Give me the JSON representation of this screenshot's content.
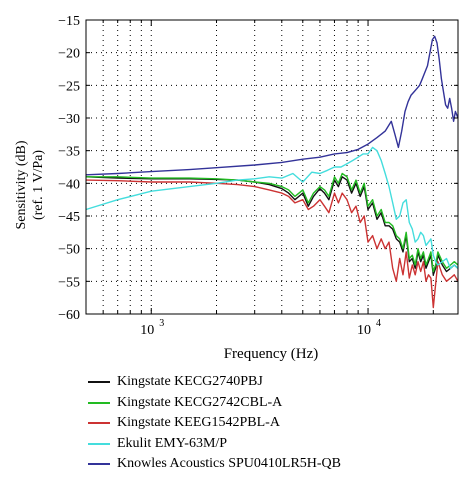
{
  "chart_data": {
    "type": "line",
    "xlabel": "Frequency (Hz)",
    "ylabel_line1": "Sensitivity (dB)",
    "ylabel_line2": "(ref. 1 V/Pa)",
    "x_scale": "log",
    "xlim": [
      500,
      26000
    ],
    "ylim": [
      -60,
      -15
    ],
    "x_ticks": [
      {
        "value": 1000,
        "label_base": "10",
        "label_exp": "3"
      },
      {
        "value": 10000,
        "label_base": "10",
        "label_exp": "4"
      }
    ],
    "y_ticks": [
      -60,
      -55,
      -50,
      -45,
      -40,
      -35,
      -30,
      -25,
      -20,
      -15
    ],
    "grid": "dotted",
    "legend_position": "below",
    "series": [
      {
        "name": "Kingstate KECG2740PBJ",
        "color": "#111111",
        "x": [
          500,
          700,
          1000,
          1500,
          2000,
          2500,
          3000,
          3500,
          4000,
          4300,
          4600,
          5000,
          5300,
          5600,
          6000,
          6300,
          6600,
          7000,
          7300,
          7600,
          8000,
          8400,
          8800,
          9200,
          9600,
          10000,
          10500,
          11000,
          11500,
          12000,
          12500,
          13000,
          13500,
          14000,
          14500,
          15000,
          15500,
          16000,
          16500,
          17000,
          17500,
          18000,
          18500,
          19000,
          19500,
          20000,
          20500,
          21000,
          22000,
          23000,
          24000,
          25000,
          26000
        ],
        "y": [
          -39,
          -39.2,
          -39.3,
          -39.3,
          -39.4,
          -39.5,
          -39.8,
          -40.2,
          -40.8,
          -41.5,
          -42.5,
          -41.5,
          -43.5,
          -42,
          -40.8,
          -41.5,
          -42.5,
          -39.5,
          -40.5,
          -39,
          -39.5,
          -41.5,
          -40,
          -42,
          -40.5,
          -44,
          -43,
          -45.5,
          -44.5,
          -46.5,
          -46.5,
          -47,
          -48.5,
          -49,
          -50.5,
          -48,
          -52,
          -51.5,
          -53,
          -50.5,
          -52,
          -51,
          -53,
          -52,
          -51,
          -54,
          -53,
          -51,
          -52.5,
          -53.5,
          -53,
          -52.5,
          -53
        ]
      },
      {
        "name": "Kingstate KECG2742CBL-A",
        "color": "#22bb22",
        "x": [
          500,
          700,
          1000,
          1500,
          2000,
          2500,
          3000,
          3500,
          4000,
          4300,
          4600,
          5000,
          5300,
          5600,
          6000,
          6300,
          6600,
          7000,
          7300,
          7600,
          8000,
          8400,
          8800,
          9200,
          9600,
          10000,
          10500,
          11000,
          11500,
          12000,
          12500,
          13000,
          13500,
          14000,
          14500,
          15000,
          15500,
          16000,
          16500,
          17000,
          17500,
          18000,
          18500,
          19000,
          19500,
          20000,
          20500,
          21000,
          22000,
          23000,
          24000,
          25000,
          26000
        ],
        "y": [
          -39,
          -39,
          -39.2,
          -39.2,
          -39.3,
          -39.5,
          -39.8,
          -40,
          -40.5,
          -41,
          -42,
          -41,
          -43,
          -41.5,
          -40.5,
          -41,
          -42,
          -39,
          -40,
          -38.5,
          -39,
          -41,
          -39.5,
          -41.5,
          -40,
          -43.5,
          -42.5,
          -45,
          -44,
          -46,
          -46,
          -46.5,
          -48,
          -48.5,
          -50,
          -47.5,
          -51.5,
          -51,
          -52.5,
          -50,
          -51.5,
          -50.5,
          -52.5,
          -51.5,
          -50.5,
          -53.5,
          -52.5,
          -50.5,
          -52,
          -53,
          -52.5,
          -52,
          -52.5
        ]
      },
      {
        "name": "Kingstate KEEG1542PBL-A",
        "color": "#cc3333",
        "x": [
          500,
          700,
          1000,
          1500,
          2000,
          2500,
          3000,
          3500,
          4000,
          4300,
          4600,
          5000,
          5300,
          5600,
          6000,
          6300,
          6600,
          7000,
          7300,
          7600,
          8000,
          8400,
          8800,
          9200,
          9600,
          10000,
          10500,
          11000,
          11500,
          12000,
          12500,
          13000,
          13500,
          14000,
          14500,
          15000,
          15500,
          16000,
          16500,
          17000,
          17500,
          18000,
          18500,
          19000,
          19500,
          20000,
          20500,
          21000,
          22000,
          23000,
          24000,
          25000,
          26000
        ],
        "y": [
          -39.5,
          -39.6,
          -39.8,
          -39.8,
          -40,
          -40.2,
          -40.5,
          -41,
          -41.5,
          -42,
          -43,
          -42.5,
          -44,
          -43.5,
          -42.5,
          -43.5,
          -44.5,
          -41.5,
          -43,
          -41.5,
          -42.5,
          -44.5,
          -43.5,
          -46,
          -45,
          -49,
          -48,
          -50,
          -48.5,
          -50,
          -49,
          -53,
          -55,
          -51.5,
          -54,
          -50.5,
          -54.5,
          -52.5,
          -54,
          -52,
          -53.5,
          -52,
          -55,
          -54,
          -54.5,
          -59,
          -55.5,
          -52,
          -54,
          -55,
          -54.5,
          -54,
          -55
        ]
      },
      {
        "name": "Ekulit EMY-63M/P",
        "color": "#44dddd",
        "x": [
          500,
          700,
          1000,
          1500,
          2000,
          2500,
          3000,
          3500,
          4000,
          4500,
          5000,
          5500,
          6000,
          6500,
          7000,
          7500,
          8000,
          8500,
          9000,
          9500,
          10000,
          10500,
          11000,
          11500,
          12000,
          12500,
          13000,
          13500,
          14000,
          14500,
          15000,
          15500,
          16000,
          16500,
          17000,
          17500,
          18000,
          18500,
          19000,
          19500,
          20000,
          20500,
          21000,
          22000,
          23000,
          24000,
          25000,
          26000
        ],
        "y": [
          -44,
          -42.5,
          -41.2,
          -40.5,
          -40,
          -39.5,
          -39.3,
          -39,
          -39.2,
          -38.5,
          -39.8,
          -38.3,
          -38.5,
          -38,
          -37.5,
          -37.5,
          -37,
          -36.5,
          -36,
          -35.5,
          -35.5,
          -34.5,
          -35,
          -36.5,
          -38.5,
          -40.5,
          -43,
          -45.5,
          -45,
          -43,
          -42.5,
          -46,
          -47,
          -49,
          -48.5,
          -47.5,
          -48,
          -49.5,
          -49,
          -48.5,
          -51,
          -52,
          -52.5,
          -52,
          -51.5,
          -53,
          -52.5,
          -53
        ]
      },
      {
        "name": "Knowles Acoustics SPU0410LR5H-QB",
        "color": "#333399",
        "x": [
          500,
          700,
          1000,
          1500,
          2000,
          3000,
          4000,
          5000,
          6000,
          7000,
          8000,
          9000,
          10000,
          11000,
          12000,
          12800,
          13300,
          13800,
          14300,
          14800,
          15300,
          15800,
          16300,
          16800,
          17300,
          17800,
          18300,
          18800,
          19300,
          19800,
          20300,
          20800,
          21300,
          21800,
          22300,
          22800,
          23300,
          23800,
          24300,
          24800,
          25300,
          26000
        ],
        "y": [
          -38.7,
          -38.5,
          -38.2,
          -37.9,
          -37.6,
          -37.2,
          -36.8,
          -36.3,
          -36,
          -35.5,
          -35.3,
          -34.8,
          -34,
          -33,
          -32,
          -30.5,
          -32.5,
          -34.5,
          -32,
          -29,
          -27.5,
          -26.5,
          -26,
          -25.5,
          -25,
          -24,
          -23,
          -22,
          -20,
          -18,
          -17.5,
          -18.5,
          -21,
          -24,
          -26,
          -28,
          -28.5,
          -27,
          -28.5,
          -30.5,
          -29,
          -30
        ]
      }
    ]
  }
}
